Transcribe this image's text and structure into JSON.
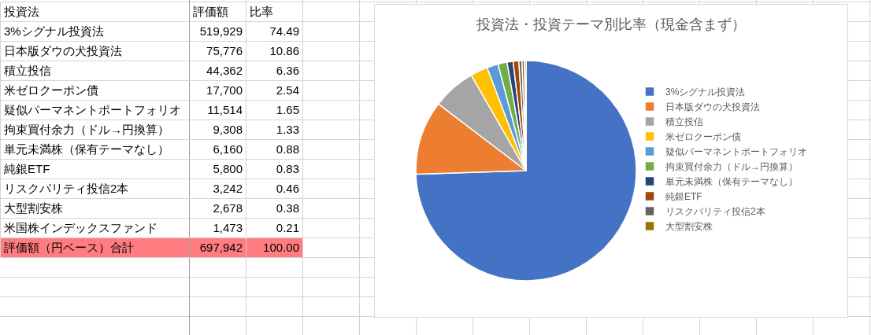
{
  "chart_data": [
    {
      "type": "other",
      "ylabel": "投資法",
      "categories": [
        "3%シグナル投資法",
        "日本版ダウの犬投資法",
        "積立投信",
        "米ゼロクーポン債",
        "疑似パーマネントポートフォリオ",
        "拘束買付余力（ドル→円換算）",
        "単元未満株（保有テーマなし）",
        "純銀ETF",
        "リスクパリティ投信2本",
        "大型割安株",
        "米国株インデックスファンド",
        "評価額（円ベース）合計"
      ],
      "series": [
        {
          "name": "評価額",
          "values": [
            519929,
            75776,
            44362,
            17700,
            11514,
            9308,
            6160,
            5800,
            3242,
            2678,
            1473,
            697942
          ],
          "value_labels": [
            "519,929",
            "75,776",
            "44,362",
            "17,700",
            "11,514",
            "9,308",
            "6,160",
            "5,800",
            "3,242",
            "2,678",
            "1,473",
            "697,942"
          ],
          "colors": [
            "#ffffff",
            "#ffffff",
            "#ffffff",
            "#ffffff",
            "#ffffff",
            "#ffffff",
            "#ffffff",
            "#ffffff",
            "#ffffff",
            "#ffffff",
            "#ffffff",
            "#ff7c80"
          ]
        },
        {
          "name": "比率",
          "values": [
            74.49,
            10.86,
            6.36,
            2.54,
            1.65,
            1.33,
            0.88,
            0.83,
            0.46,
            0.38,
            0.21,
            100
          ],
          "value_labels": [
            "74.49",
            "10.86",
            "6.36",
            "2.54",
            "1.65",
            "1.33",
            "0.88",
            "0.83",
            "0.46",
            "0.38",
            "0.21",
            "100.00"
          ],
          "colors": [
            "#ffffff",
            "#ffffff",
            "#ffffff",
            "#ffffff",
            "#ffffff",
            "#ffffff",
            "#ffffff",
            "#ffffff",
            "#ffffff",
            "#ffffff",
            "#ffffff",
            "#ff7c80"
          ]
        }
      ],
      "colors": [
        "#ffffff",
        "#ffffff",
        "#ffffff",
        "#ffffff",
        "#ffffff",
        "#ffffff",
        "#ffffff",
        "#ffffff",
        "#ffffff",
        "#ffffff",
        "#ffffff",
        "#ff7c80"
      ]
    },
    {
      "type": "pie",
      "title": "投資法・投資テーマ別比率（現金含まず）",
      "categories": [
        "3%シグナル投資法",
        "日本版ダウの犬投資法",
        "積立投信",
        "米ゼロクーポン債",
        "疑似パーマネントポートフォリオ",
        "拘束買付余力（ドル→円換算）",
        "単元未満株（保有テーマなし）",
        "純銀ETF",
        "リスクパリティ投信2本",
        "大型割安株",
        null
      ],
      "values": [
        74.49,
        10.86,
        6.36,
        2.54,
        1.65,
        1.33,
        0.88,
        0.83,
        0.46,
        0.38,
        0.21
      ],
      "colors": [
        "#4472c4",
        "#ed7d31",
        "#a5a5a5",
        "#ffc000",
        "#5b9bd5",
        "#70ad47",
        "#264478",
        "#9e480e",
        "#636363",
        "#997300",
        "#255e91"
      ],
      "legend": "right"
    }
  ]
}
